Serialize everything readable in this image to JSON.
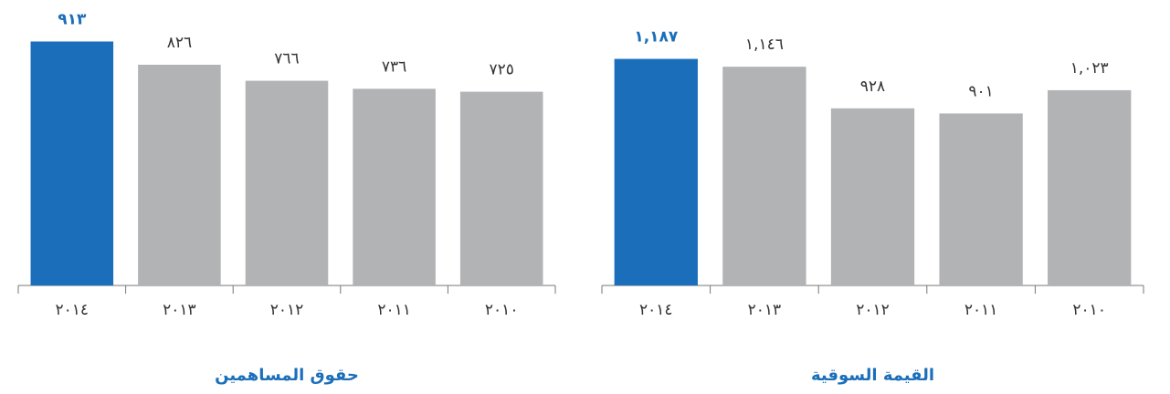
{
  "chart_data": [
    {
      "type": "bar",
      "title": "القيمة السوقية",
      "categories": [
        "٢٠١٤",
        "٢٠١٣",
        "٢٠١٢",
        "٢٠١١",
        "٢٠١٠"
      ],
      "values": [
        1187,
        1146,
        928,
        901,
        1023
      ],
      "value_labels": [
        "١,١٨٧",
        "١,١٤٦",
        "٩٢٨",
        "٩٠١",
        "١,٠٢٣"
      ],
      "colors": [
        "#1b6fba",
        "#b2b3b5",
        "#b2b3b5",
        "#b2b3b5",
        "#b2b3b5"
      ],
      "ylim": [
        0,
        1400
      ]
    },
    {
      "type": "bar",
      "title": "حقوق المساهمين",
      "categories": [
        "٢٠١٤",
        "٢٠١٣",
        "٢٠١٢",
        "٢٠١١",
        "٢٠١٠"
      ],
      "values": [
        913,
        826,
        766,
        736,
        725
      ],
      "value_labels": [
        "٩١٣",
        "٨٢٦",
        "٧٦٦",
        "٧٣٦",
        "٧٢٥"
      ],
      "colors": [
        "#1b6fba",
        "#b2b3b5",
        "#b2b3b5",
        "#b2b3b5",
        "#b2b3b5"
      ],
      "ylim": [
        0,
        1000
      ]
    }
  ]
}
